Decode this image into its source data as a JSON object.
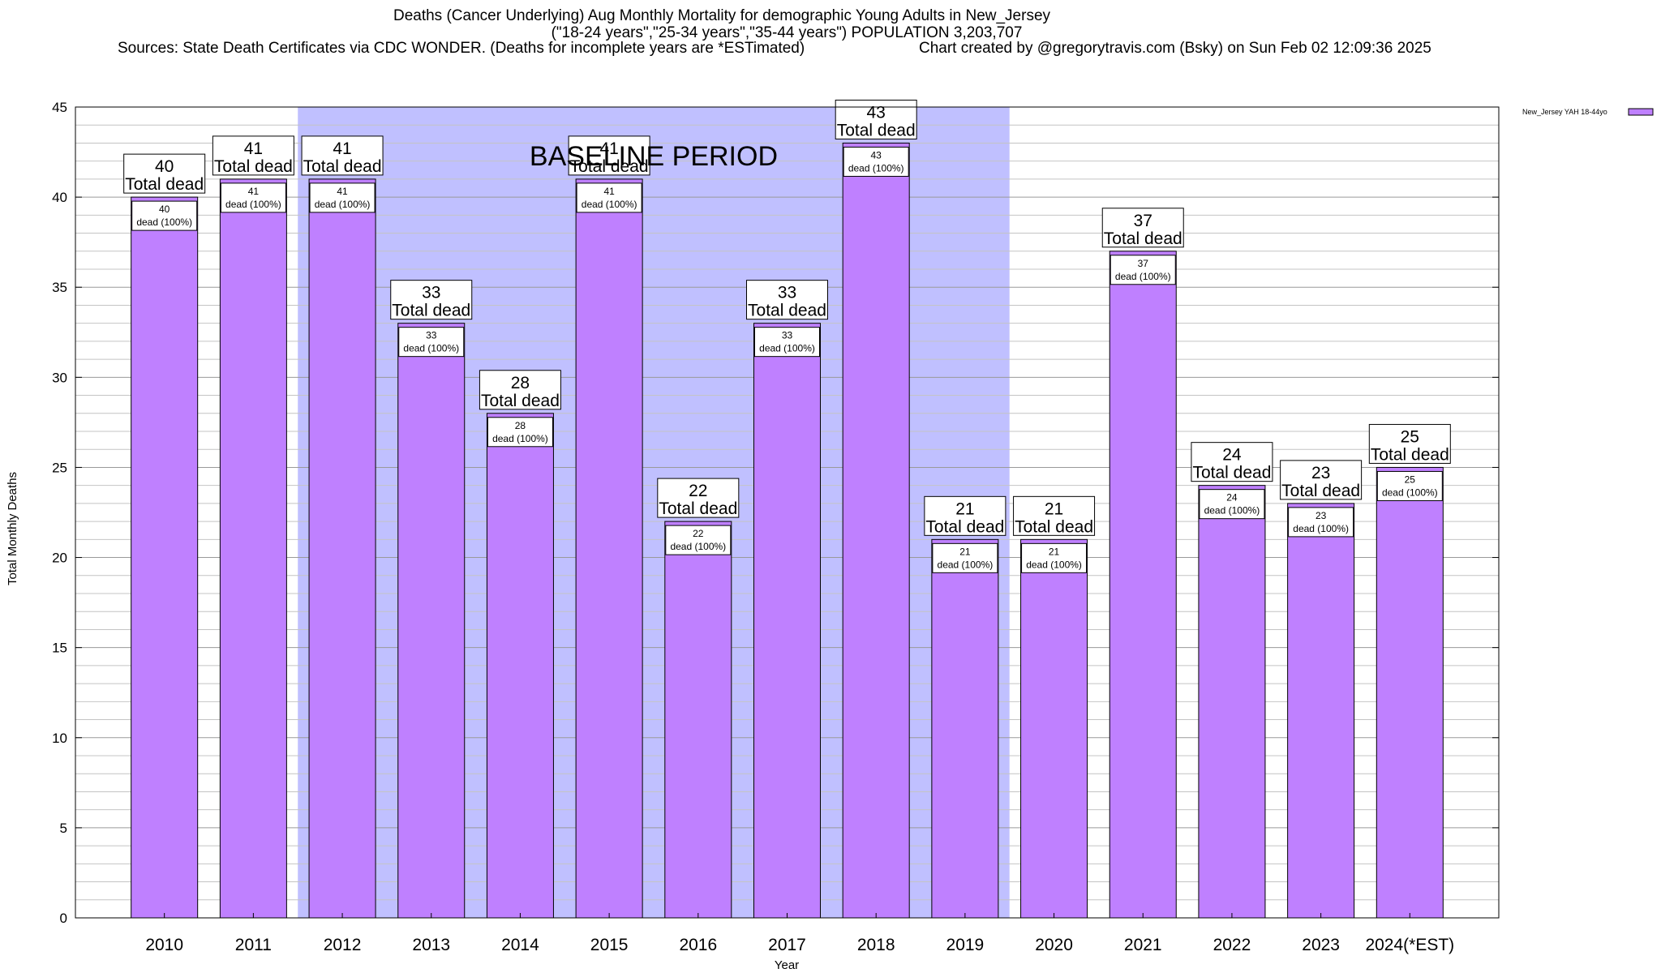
{
  "chart_data": {
    "type": "bar",
    "title_lines": [
      "Deaths (Cancer Underlying) Aug Monthly Mortality for demographic Young Adults in New_Jersey",
      "(\"18-24 years\",\"25-34 years\",\"35-44 years\") POPULATION 3,203,707"
    ],
    "sources": "Sources: State Death Certificates via CDC WONDER. (Deaths for incomplete years are *ESTimated)",
    "credit": "Chart created by @gregorytravis.com (Bsky) on Sun Feb 02 12:09:36 2025",
    "xlabel": "Year",
    "ylabel": "Total Monthly Deaths",
    "ylim": [
      0,
      45
    ],
    "y_ticks": [
      0,
      5,
      10,
      15,
      20,
      25,
      30,
      35,
      40,
      45
    ],
    "grid": "horizontal",
    "categories": [
      "2010",
      "2011",
      "2012",
      "2013",
      "2014",
      "2015",
      "2016",
      "2017",
      "2018",
      "2019",
      "2020",
      "2021",
      "2022",
      "2023",
      "2024(*EST)"
    ],
    "series": [
      {
        "name": "New_Jersey YAH 18-44yo",
        "color": "#bf80ff",
        "values": [
          40,
          41,
          41,
          33,
          28,
          41,
          22,
          33,
          43,
          21,
          21,
          37,
          24,
          23,
          25
        ]
      }
    ],
    "top_label_text": "Total dead",
    "inner_label_text": "dead (100%)",
    "baseline_region": {
      "label": "BASELINE PERIOD",
      "from_category": "2012",
      "to_category": "2019",
      "color": "#c0c0ff"
    },
    "legend_position": "top-right"
  }
}
